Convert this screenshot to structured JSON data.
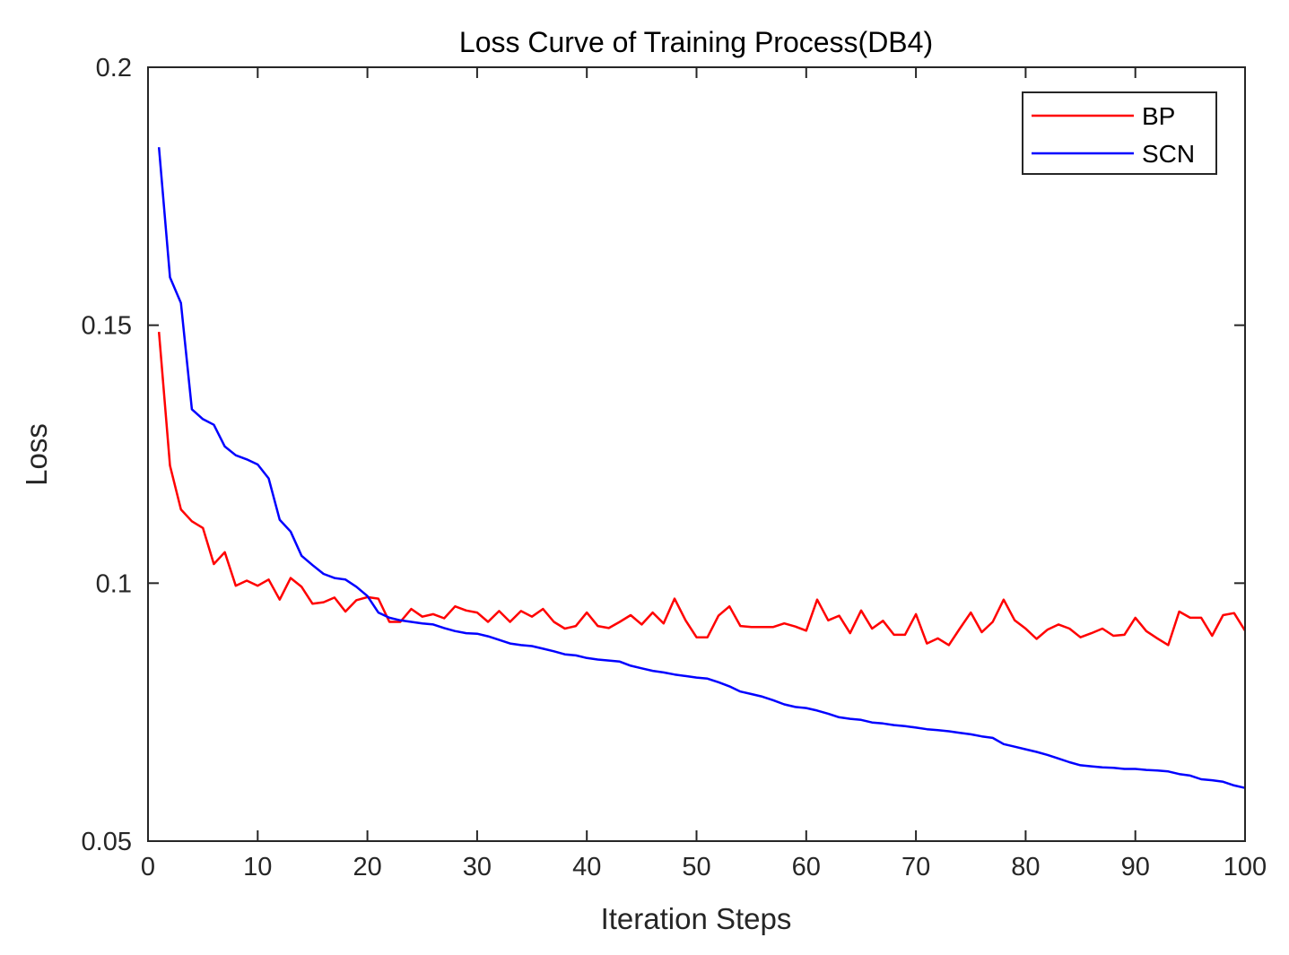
{
  "chart_data": {
    "type": "line",
    "title": "Loss Curve of Training Process(DB4)",
    "xlabel": "Iteration Steps",
    "ylabel": "Loss",
    "xlim": [
      0,
      100
    ],
    "ylim": [
      0.05,
      0.2
    ],
    "x_ticks": [
      0,
      10,
      20,
      30,
      40,
      50,
      60,
      70,
      80,
      90,
      100
    ],
    "y_ticks": [
      0.05,
      0.1,
      0.15,
      0.2
    ],
    "x_tick_labels": [
      "0",
      "10",
      "20",
      "30",
      "40",
      "50",
      "60",
      "70",
      "80",
      "90",
      "100"
    ],
    "y_tick_labels": [
      "0.05",
      "0.1",
      "0.15",
      "0.2"
    ],
    "grid": false,
    "legend_position": "top-right",
    "x": [
      1,
      2,
      3,
      4,
      5,
      6,
      7,
      8,
      9,
      10,
      11,
      12,
      13,
      14,
      15,
      16,
      17,
      18,
      19,
      20,
      21,
      22,
      23,
      24,
      25,
      26,
      27,
      28,
      29,
      30,
      31,
      32,
      33,
      34,
      35,
      36,
      37,
      38,
      39,
      40,
      41,
      42,
      43,
      44,
      45,
      46,
      47,
      48,
      49,
      50,
      51,
      52,
      53,
      54,
      55,
      56,
      57,
      58,
      59,
      60,
      61,
      62,
      63,
      64,
      65,
      66,
      67,
      68,
      69,
      70,
      71,
      72,
      73,
      74,
      75,
      76,
      77,
      78,
      79,
      80,
      81,
      82,
      83,
      84,
      85,
      86,
      87,
      88,
      89,
      90,
      91,
      92,
      93,
      94,
      95,
      96,
      97,
      98,
      99,
      100
    ],
    "series": [
      {
        "name": "BP",
        "color": "#ff0000",
        "values": [
          0.1487,
          0.1228,
          0.1143,
          0.112,
          0.1107,
          0.1037,
          0.106,
          0.0995,
          0.1005,
          0.0995,
          0.1007,
          0.0968,
          0.101,
          0.0993,
          0.096,
          0.0963,
          0.0972,
          0.0945,
          0.0967,
          0.0973,
          0.097,
          0.0925,
          0.0925,
          0.095,
          0.0935,
          0.094,
          0.0932,
          0.0955,
          0.0947,
          0.0943,
          0.0925,
          0.0946,
          0.0925,
          0.0946,
          0.0935,
          0.095,
          0.0925,
          0.0912,
          0.0917,
          0.0943,
          0.0917,
          0.0913,
          0.0925,
          0.0938,
          0.092,
          0.0943,
          0.0922,
          0.097,
          0.0928,
          0.0895,
          0.0895,
          0.0937,
          0.0955,
          0.0917,
          0.0915,
          0.0915,
          0.0915,
          0.0922,
          0.0916,
          0.0908,
          0.0968,
          0.0928,
          0.0937,
          0.0903,
          0.0947,
          0.0912,
          0.0927,
          0.09,
          0.09,
          0.094,
          0.0883,
          0.0893,
          0.088,
          0.0912,
          0.0943,
          0.0905,
          0.0925,
          0.0968,
          0.0928,
          0.0912,
          0.0892,
          0.091,
          0.092,
          0.0912,
          0.0895,
          0.0903,
          0.0912,
          0.0898,
          0.09,
          0.0933,
          0.0907,
          0.0893,
          0.088,
          0.0945,
          0.0933,
          0.0933,
          0.0898,
          0.0938,
          0.0942,
          0.0908
        ]
      },
      {
        "name": "SCN",
        "color": "#0000ff",
        "values": [
          0.1845,
          0.1593,
          0.1543,
          0.1337,
          0.1318,
          0.1307,
          0.1265,
          0.1248,
          0.124,
          0.123,
          0.1203,
          0.1123,
          0.11,
          0.1053,
          0.1035,
          0.1018,
          0.101,
          0.1007,
          0.0993,
          0.0975,
          0.0943,
          0.0933,
          0.0928,
          0.0925,
          0.0922,
          0.092,
          0.0913,
          0.0907,
          0.0903,
          0.0902,
          0.0897,
          0.089,
          0.0883,
          0.088,
          0.0878,
          0.0873,
          0.0868,
          0.0862,
          0.086,
          0.0855,
          0.0852,
          0.085,
          0.0848,
          0.084,
          0.0835,
          0.083,
          0.0827,
          0.0823,
          0.082,
          0.0817,
          0.0815,
          0.0808,
          0.08,
          0.079,
          0.0785,
          0.078,
          0.0773,
          0.0765,
          0.076,
          0.0758,
          0.0753,
          0.0747,
          0.074,
          0.0737,
          0.0735,
          0.073,
          0.0728,
          0.0725,
          0.0723,
          0.072,
          0.0717,
          0.0715,
          0.0713,
          0.071,
          0.0707,
          0.0703,
          0.07,
          0.0688,
          0.0683,
          0.0678,
          0.0673,
          0.0667,
          0.066,
          0.0653,
          0.0647,
          0.0645,
          0.0643,
          0.0642,
          0.064,
          0.064,
          0.0638,
          0.0637,
          0.0635,
          0.063,
          0.0627,
          0.062,
          0.0618,
          0.0615,
          0.0608,
          0.0603
        ]
      }
    ]
  }
}
